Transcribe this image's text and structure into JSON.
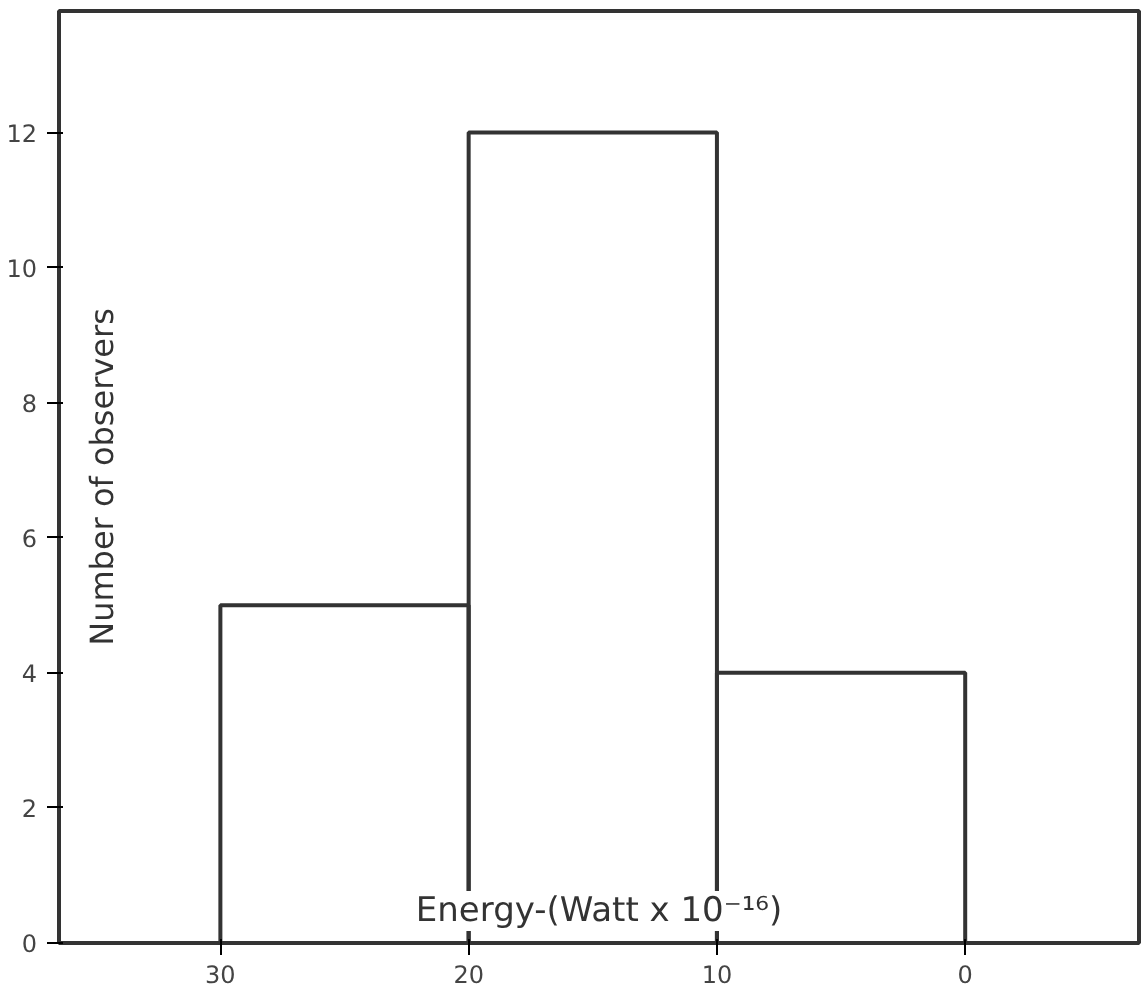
{
  "chart_data": {
    "type": "histogram",
    "xlabel": "Energy-(Watt x 10⁻¹⁶)",
    "ylabel": "Number of observers",
    "bins": [
      30,
      20,
      10,
      0
    ],
    "values": [
      5,
      12,
      4
    ],
    "color": "#333333",
    "xlim": [
      36.5,
      -7
    ],
    "xticks": [
      30,
      20,
      10,
      0
    ],
    "ylim": [
      0,
      13.8
    ],
    "yticks": [
      0,
      2,
      4,
      6,
      8,
      10,
      12
    ],
    "grid": false
  }
}
